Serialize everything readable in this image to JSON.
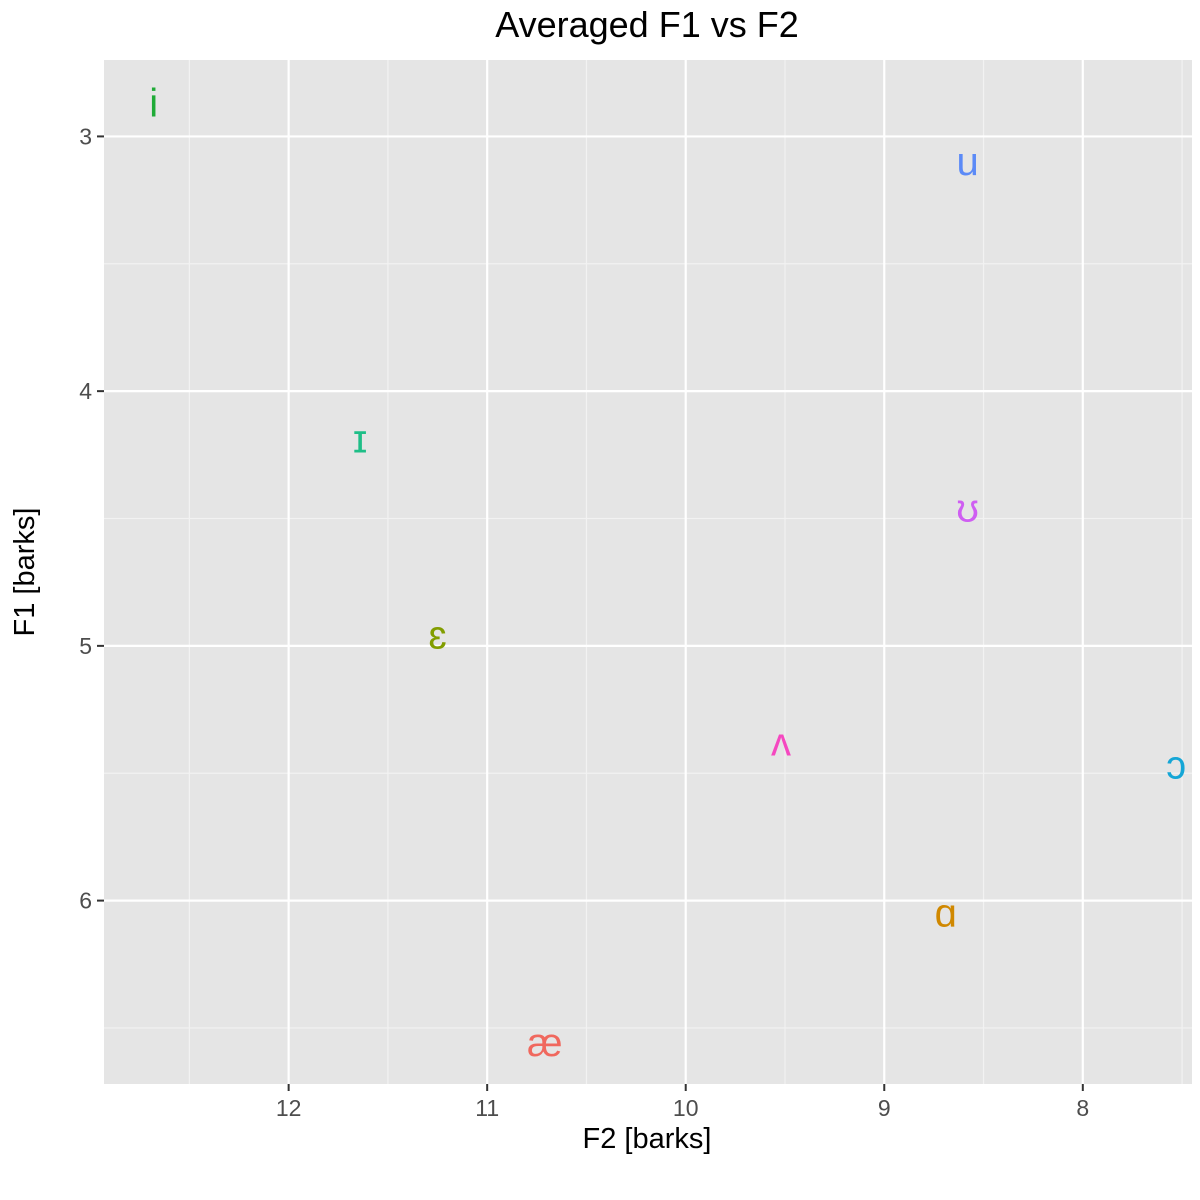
{
  "chart_data": {
    "type": "scatter",
    "title": "Averaged F1 vs F2",
    "xlabel": "F2 [barks]",
    "ylabel": "F1 [barks]",
    "x_reversed": true,
    "y_reversed": true,
    "xlim": [
      12.93,
      7.45
    ],
    "ylim": [
      2.7,
      6.72
    ],
    "x_ticks": [
      12,
      11,
      10,
      9,
      8
    ],
    "y_ticks": [
      3,
      4,
      5,
      6
    ],
    "grid": true,
    "background": "#e5e5e5",
    "points": [
      {
        "label": "i",
        "x": 12.68,
        "y": 2.87,
        "color": "#1fab37"
      },
      {
        "label": "u",
        "x": 8.58,
        "y": 3.1,
        "color": "#5b8af7"
      },
      {
        "label": "ɪ",
        "x": 11.64,
        "y": 4.19,
        "color": "#1ebe87"
      },
      {
        "label": "ʊ",
        "x": 8.58,
        "y": 4.46,
        "color": "#cf5ef2"
      },
      {
        "label": "ɛ",
        "x": 11.25,
        "y": 4.96,
        "color": "#829d00"
      },
      {
        "label": "ʌ",
        "x": 9.52,
        "y": 5.38,
        "color": "#f548c0"
      },
      {
        "label": "ɔ",
        "x": 7.53,
        "y": 5.47,
        "color": "#15a6d6"
      },
      {
        "label": "ɑ",
        "x": 8.69,
        "y": 6.05,
        "color": "#d08800"
      },
      {
        "label": "æ",
        "x": 10.71,
        "y": 6.56,
        "color": "#f0685e"
      }
    ]
  }
}
